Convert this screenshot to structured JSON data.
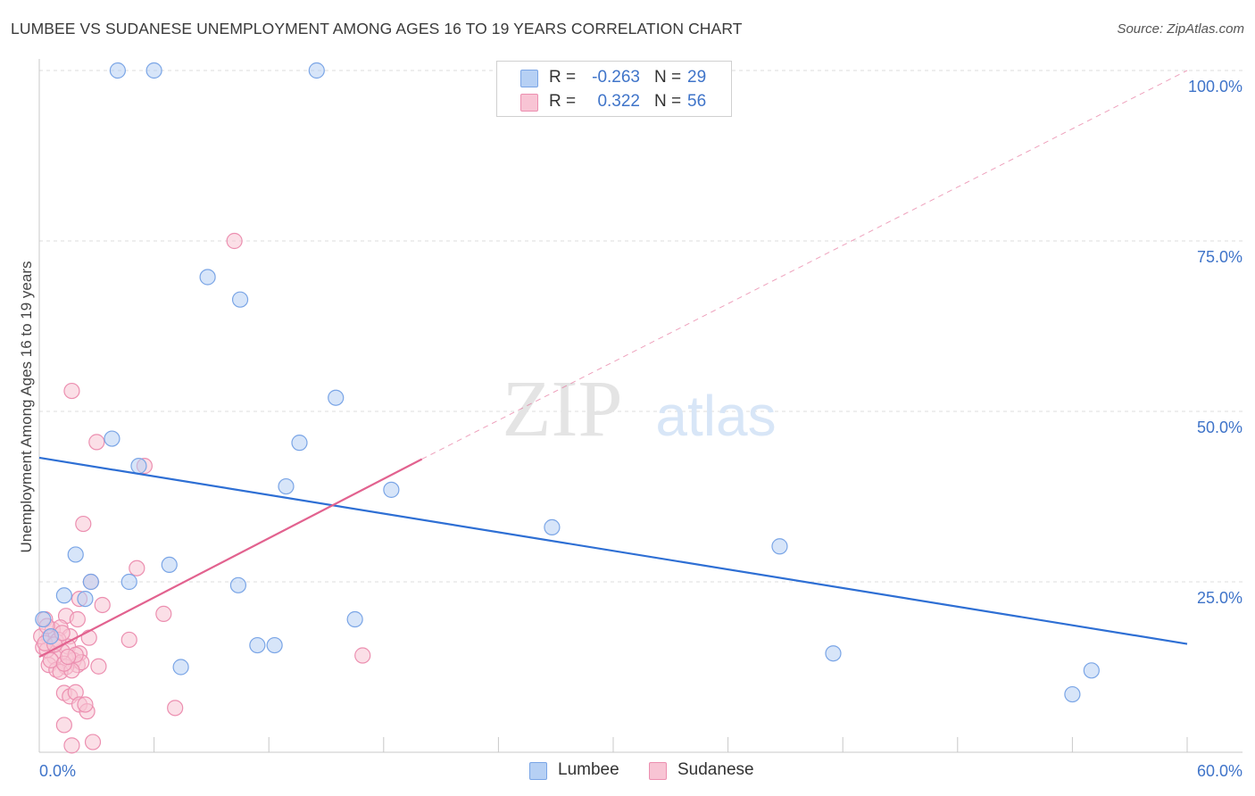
{
  "title": "LUMBEE VS SUDANESE UNEMPLOYMENT AMONG AGES 16 TO 19 YEARS CORRELATION CHART",
  "source": "Source: ZipAtlas.com",
  "watermark": {
    "zip": "ZIP",
    "atlas": "atlas"
  },
  "colors": {
    "lumbee_fill": "#b6d0f4",
    "lumbee_stroke": "#7aa5e6",
    "lumbee_line": "#2e6fd4",
    "sudanese_fill": "#f8c4d4",
    "sudanese_stroke": "#ec8fb0",
    "sudanese_line": "#e2628f",
    "tick_text": "#3f74c9",
    "grid": "#dcdcdc"
  },
  "legend": {
    "rows": [
      {
        "r_label": "R =",
        "r_value": "-0.263",
        "n_label": "N =",
        "n_value": "29"
      },
      {
        "r_label": "R =",
        "r_value": "0.322",
        "n_label": "N =",
        "n_value": "56"
      }
    ]
  },
  "bottom_legend": {
    "lumbee": "Lumbee",
    "sudanese": "Sudanese"
  },
  "chart_data": {
    "type": "scatter",
    "title": "LUMBEE VS SUDANESE UNEMPLOYMENT AMONG AGES 16 TO 19 YEARS CORRELATION CHART",
    "xlabel": "",
    "ylabel": "Unemployment Among Ages 16 to 19 years",
    "xlim": [
      0,
      60
    ],
    "ylim": [
      0,
      100
    ],
    "x_tick_labels": [
      "0.0%",
      "60.0%"
    ],
    "y_ticks": [
      25,
      50,
      75,
      100
    ],
    "y_tick_labels": [
      "25.0%",
      "50.0%",
      "75.0%",
      "100.0%"
    ],
    "grid": true,
    "legend_position": "top-center",
    "series": [
      {
        "name": "Lumbee",
        "r": -0.263,
        "n": 29,
        "trend": {
          "x": [
            0,
            60
          ],
          "y": [
            43.2,
            15.9
          ],
          "style": "solid"
        },
        "points": [
          [
            4.1,
            100
          ],
          [
            6.0,
            100
          ],
          [
            14.5,
            100
          ],
          [
            8.8,
            69.7
          ],
          [
            10.5,
            66.4
          ],
          [
            15.5,
            52.0
          ],
          [
            13.6,
            45.4
          ],
          [
            3.8,
            46.0
          ],
          [
            5.2,
            42.0
          ],
          [
            12.9,
            39.0
          ],
          [
            18.4,
            38.5
          ],
          [
            26.8,
            33.0
          ],
          [
            38.7,
            30.2
          ],
          [
            1.9,
            29.0
          ],
          [
            6.8,
            27.5
          ],
          [
            4.7,
            25.0
          ],
          [
            2.7,
            25.0
          ],
          [
            10.4,
            24.5
          ],
          [
            1.3,
            23.0
          ],
          [
            2.4,
            22.5
          ],
          [
            16.5,
            19.5
          ],
          [
            0.2,
            19.5
          ],
          [
            11.4,
            15.7
          ],
          [
            12.3,
            15.7
          ],
          [
            7.4,
            12.5
          ],
          [
            41.5,
            14.5
          ],
          [
            55.0,
            12.0
          ],
          [
            54.0,
            8.5
          ],
          [
            0.6,
            17.0
          ]
        ]
      },
      {
        "name": "Sudanese",
        "r": 0.322,
        "n": 56,
        "trend": {
          "x": [
            0,
            20
          ],
          "y": [
            14.0,
            43.0
          ],
          "style": "solid",
          "extended": {
            "x": [
              20,
              60
            ],
            "y": [
              43.0,
              100.0
            ],
            "style": "dashed"
          }
        },
        "points": [
          [
            10.2,
            75.0
          ],
          [
            1.7,
            53.0
          ],
          [
            3.0,
            45.5
          ],
          [
            5.5,
            42.0
          ],
          [
            2.3,
            33.5
          ],
          [
            5.1,
            27.0
          ],
          [
            2.7,
            25.0
          ],
          [
            6.5,
            20.3
          ],
          [
            3.3,
            21.6
          ],
          [
            2.1,
            22.5
          ],
          [
            1.4,
            20.0
          ],
          [
            2.0,
            19.5
          ],
          [
            0.3,
            19.5
          ],
          [
            0.7,
            18.0
          ],
          [
            1.1,
            18.3
          ],
          [
            1.6,
            17.0
          ],
          [
            0.5,
            16.8
          ],
          [
            0.9,
            16.2
          ],
          [
            1.5,
            15.5
          ],
          [
            0.2,
            15.4
          ],
          [
            1.2,
            14.8
          ],
          [
            2.1,
            14.5
          ],
          [
            0.8,
            14.0
          ],
          [
            1.8,
            13.5
          ],
          [
            2.0,
            12.8
          ],
          [
            1.4,
            12.5
          ],
          [
            0.5,
            12.8
          ],
          [
            0.9,
            12.1
          ],
          [
            1.1,
            11.8
          ],
          [
            3.1,
            12.6
          ],
          [
            2.2,
            13.2
          ],
          [
            1.7,
            12.0
          ],
          [
            0.4,
            15.0
          ],
          [
            1.0,
            16.5
          ],
          [
            4.7,
            16.5
          ],
          [
            16.9,
            14.2
          ],
          [
            1.3,
            8.7
          ],
          [
            1.6,
            8.2
          ],
          [
            1.9,
            8.8
          ],
          [
            2.1,
            7.0
          ],
          [
            2.5,
            6.0
          ],
          [
            2.4,
            7.0
          ],
          [
            7.1,
            6.5
          ],
          [
            1.3,
            4.0
          ],
          [
            1.7,
            1.0
          ],
          [
            2.8,
            1.5
          ],
          [
            0.1,
            17.0
          ],
          [
            0.3,
            16.0
          ],
          [
            1.9,
            14.3
          ],
          [
            0.6,
            13.5
          ],
          [
            1.3,
            13.0
          ],
          [
            2.6,
            16.8
          ],
          [
            0.8,
            15.8
          ],
          [
            1.2,
            17.5
          ],
          [
            0.4,
            18.5
          ],
          [
            1.5,
            14.0
          ]
        ]
      }
    ]
  }
}
